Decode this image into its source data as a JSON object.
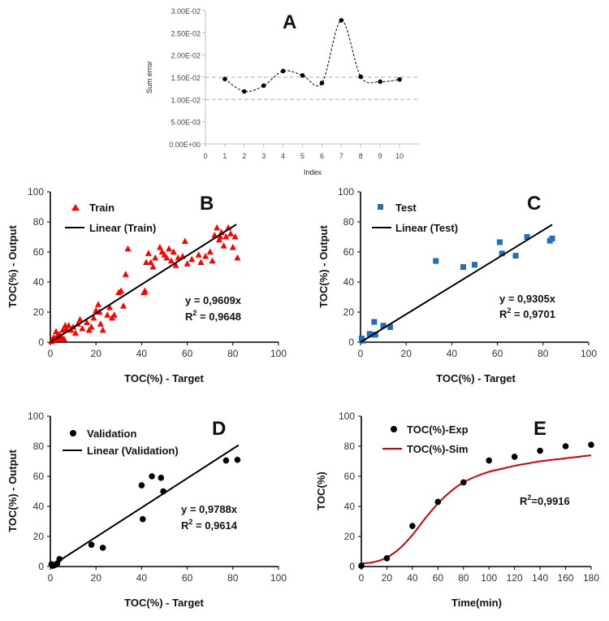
{
  "chart_data": [
    {
      "panel": "A",
      "type": "line",
      "xlabel": "Index",
      "ylabel": "Sum error",
      "xlim": [
        0,
        11
      ],
      "ylim": [
        0,
        0.03
      ],
      "x_ticks": [
        "0",
        "1",
        "2",
        "3",
        "4",
        "5",
        "6",
        "7",
        "8",
        "9",
        "10"
      ],
      "y_ticks": [
        "0.00E+00",
        "5.00E-03",
        "1.00E-02",
        "1.50E-02",
        "2.00E-02",
        "2.50E-02",
        "3.00E-02"
      ],
      "x": [
        1,
        2,
        3,
        4,
        5,
        6,
        7,
        8,
        9,
        10
      ],
      "values": [
        0.0146,
        0.0118,
        0.0131,
        0.0164,
        0.0154,
        0.0137,
        0.0278,
        0.0151,
        0.014,
        0.0145
      ],
      "reference_lines": [
        0.01,
        0.015
      ],
      "grid": "reference dashed lines at 1.00E-02 and 1.50E-02"
    },
    {
      "panel": "B",
      "type": "scatter",
      "xlabel": "TOC(%) - Target",
      "ylabel": "TOC(%) - Output",
      "xlim": [
        0,
        100
      ],
      "ylim": [
        0,
        100
      ],
      "x_ticks": [
        "0",
        "20",
        "40",
        "60",
        "80",
        "100"
      ],
      "y_ticks": [
        "0",
        "20",
        "40",
        "60",
        "80",
        "100"
      ],
      "legend_position": "top-left",
      "legend": [
        "Train",
        "Linear (Train)"
      ],
      "marker": "triangle",
      "color": "#ff0000",
      "equation": "y = 0,9609x",
      "r2_prefix": "R",
      "r2_value": " = 0,9648",
      "slope": 0.9609,
      "fit_x_range": [
        0,
        81.5
      ],
      "points": [
        [
          0.5,
          0.5
        ],
        [
          1,
          2
        ],
        [
          1.5,
          3
        ],
        [
          2,
          1
        ],
        [
          2.5,
          7
        ],
        [
          3,
          4
        ],
        [
          3.5,
          2
        ],
        [
          4,
          5
        ],
        [
          5,
          3
        ],
        [
          5.5,
          8
        ],
        [
          6,
          2
        ],
        [
          6.5,
          11
        ],
        [
          7,
          9
        ],
        [
          8,
          11
        ],
        [
          9,
          8
        ],
        [
          10,
          10
        ],
        [
          11,
          6
        ],
        [
          12,
          12
        ],
        [
          13,
          15
        ],
        [
          14,
          9
        ],
        [
          16,
          13
        ],
        [
          17,
          8
        ],
        [
          18,
          10
        ],
        [
          19,
          16
        ],
        [
          20,
          21
        ],
        [
          21,
          25
        ],
        [
          21.5,
          20
        ],
        [
          22,
          12
        ],
        [
          23,
          8
        ],
        [
          25,
          18
        ],
        [
          26,
          23
        ],
        [
          27,
          16
        ],
        [
          28,
          18
        ],
        [
          30,
          33
        ],
        [
          31,
          34
        ],
        [
          32,
          24
        ],
        [
          33,
          45
        ],
        [
          34,
          62
        ],
        [
          41,
          33
        ],
        [
          41.5,
          34
        ],
        [
          42,
          53
        ],
        [
          43,
          59
        ],
        [
          44,
          53
        ],
        [
          45,
          50
        ],
        [
          46,
          56
        ],
        [
          48,
          63
        ],
        [
          49,
          60
        ],
        [
          50,
          58
        ],
        [
          51,
          56
        ],
        [
          52,
          62
        ],
        [
          53,
          54
        ],
        [
          54,
          60
        ],
        [
          55,
          51
        ],
        [
          56,
          56
        ],
        [
          58,
          57
        ],
        [
          59,
          67
        ],
        [
          60,
          52
        ],
        [
          62,
          55
        ],
        [
          65,
          58
        ],
        [
          66,
          53
        ],
        [
          68,
          57
        ],
        [
          70,
          60
        ],
        [
          71,
          54
        ],
        [
          72,
          71
        ],
        [
          73,
          76
        ],
        [
          74,
          68
        ],
        [
          74.5,
          70
        ],
        [
          75,
          73
        ],
        [
          76,
          64
        ],
        [
          77,
          70
        ],
        [
          78,
          76
        ],
        [
          79,
          72
        ],
        [
          80,
          63
        ],
        [
          81,
          70
        ],
        [
          82,
          56
        ]
      ]
    },
    {
      "panel": "C",
      "type": "scatter",
      "xlabel": "TOC(%) - Target",
      "ylabel": "TOC(%) - Output",
      "xlim": [
        0,
        100
      ],
      "ylim": [
        0,
        100
      ],
      "x_ticks": [
        "0",
        "20",
        "40",
        "60",
        "80",
        "100"
      ],
      "y_ticks": [
        "0",
        "20",
        "40",
        "60",
        "80",
        "100"
      ],
      "legend_position": "top-left",
      "legend": [
        "Test",
        "Linear (Test)"
      ],
      "marker": "square",
      "color": "#1f6fb8",
      "equation": "y = 0,9305x",
      "r2_prefix": "R",
      "r2_value": " = 0,9701",
      "slope": 0.9305,
      "fit_x_range": [
        0,
        84
      ],
      "points": [
        [
          0.5,
          2.5
        ],
        [
          1,
          1
        ],
        [
          4,
          5.5
        ],
        [
          5,
          5
        ],
        [
          6,
          13.5
        ],
        [
          6.5,
          5
        ],
        [
          10,
          11
        ],
        [
          13,
          10
        ],
        [
          33,
          54
        ],
        [
          45,
          50
        ],
        [
          50,
          51.5
        ],
        [
          61,
          66.5
        ],
        [
          62,
          59
        ],
        [
          68,
          57.5
        ],
        [
          73,
          70
        ],
        [
          83,
          67.5
        ],
        [
          84,
          69
        ]
      ]
    },
    {
      "panel": "D",
      "type": "scatter",
      "xlabel": "TOC(%) - Target",
      "ylabel": "TOC(%) - Output",
      "xlim": [
        0,
        100
      ],
      "ylim": [
        0,
        100
      ],
      "x_ticks": [
        "0",
        "20",
        "40",
        "60",
        "80",
        "100"
      ],
      "y_ticks": [
        "0",
        "20",
        "40",
        "60",
        "80",
        "100"
      ],
      "legend_position": "top-left",
      "legend": [
        "Validation",
        "Linear (Validation)"
      ],
      "marker": "circle",
      "color": "#000000",
      "equation": "y = 0,9788x",
      "r2_prefix": "R",
      "r2_value": " = 0,9614",
      "slope": 0.9788,
      "fit_x_range": [
        0,
        82.5
      ],
      "points": [
        [
          0.5,
          1.5
        ],
        [
          1,
          0.5
        ],
        [
          2,
          1
        ],
        [
          3,
          2
        ],
        [
          4,
          5
        ],
        [
          18,
          14.5
        ],
        [
          23,
          12.5
        ],
        [
          40,
          54
        ],
        [
          40.5,
          31.5
        ],
        [
          44.5,
          60
        ],
        [
          48.5,
          59
        ],
        [
          49.5,
          50
        ],
        [
          77,
          70.5
        ],
        [
          82,
          71
        ]
      ]
    },
    {
      "panel": "E",
      "type": "scatter+line",
      "xlabel": "Time(min)",
      "ylabel": "TOC(%)",
      "xlim": [
        0,
        180
      ],
      "ylim": [
        0,
        100
      ],
      "x_ticks": [
        "0",
        "20",
        "40",
        "60",
        "80",
        "100",
        "120",
        "140",
        "160",
        "180"
      ],
      "y_ticks": [
        "0",
        "20",
        "40",
        "60",
        "80",
        "100"
      ],
      "legend_position": "top-left",
      "series": [
        {
          "name": "TOC(%)-Exp",
          "type": "scatter",
          "color": "#000000",
          "x": [
            0,
            20,
            40,
            60,
            80,
            100,
            120,
            140,
            160,
            180
          ],
          "values": [
            0.5,
            5.5,
            27,
            43,
            56,
            70.5,
            73,
            77,
            80,
            81
          ]
        },
        {
          "name": "TOC(%)-Sim",
          "type": "line",
          "color": "#d40000",
          "x": [
            0,
            10,
            20,
            30,
            40,
            50,
            60,
            70,
            80,
            90,
            100,
            110,
            120,
            130,
            140,
            150,
            160,
            170,
            180
          ],
          "values": [
            2,
            3,
            6,
            12,
            21,
            32,
            42,
            50,
            56,
            60,
            63,
            65,
            67,
            68.5,
            70,
            71,
            72,
            73,
            74
          ]
        }
      ],
      "r2_prefix": "R",
      "r2_value": "=0,9916"
    }
  ],
  "panels": {
    "A": {
      "letter": "A"
    },
    "B": {
      "letter": "B"
    },
    "C": {
      "letter": "C"
    },
    "D": {
      "letter": "D"
    },
    "E": {
      "letter": "E"
    }
  }
}
